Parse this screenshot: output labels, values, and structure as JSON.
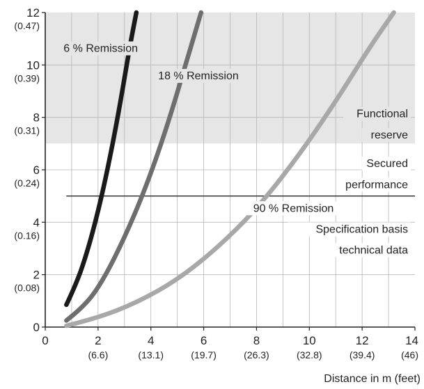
{
  "chart_data": {
    "type": "line",
    "xlabel": "Distance in m (feet)",
    "ylabel": "",
    "xlim": [
      0,
      14
    ],
    "ylim": [
      0,
      12
    ],
    "grid": true,
    "x_ticks": [
      {
        "value": 0,
        "label": "0",
        "sub": ""
      },
      {
        "value": 2,
        "label": "2",
        "sub": "(6.6)"
      },
      {
        "value": 4,
        "label": "4",
        "sub": "(13.1)"
      },
      {
        "value": 6,
        "label": "6",
        "sub": "(19.7)"
      },
      {
        "value": 8,
        "label": "8",
        "sub": "(26.3)"
      },
      {
        "value": 10,
        "label": "10",
        "sub": "(32.8)"
      },
      {
        "value": 12,
        "label": "12",
        "sub": "(39.4)"
      },
      {
        "value": 14,
        "label": "14",
        "sub": "(46)"
      }
    ],
    "y_ticks": [
      {
        "value": 0,
        "label": "0",
        "sub": ""
      },
      {
        "value": 2,
        "label": "2",
        "sub": "(0.08)"
      },
      {
        "value": 4,
        "label": "4",
        "sub": "(0.16)"
      },
      {
        "value": 6,
        "label": "6",
        "sub": "(0.24)"
      },
      {
        "value": 8,
        "label": "8",
        "sub": "(0.31)"
      },
      {
        "value": 10,
        "label": "10",
        "sub": "(0.39)"
      },
      {
        "value": 12,
        "label": "12",
        "sub": "(0.47)"
      }
    ],
    "series": [
      {
        "name": "6 % Remission",
        "color": "#1a1a1a",
        "x": [
          0.8,
          1.2,
          1.6,
          2.0,
          2.4,
          2.8,
          3.2,
          3.45
        ],
        "y": [
          0.85,
          1.7,
          2.9,
          4.4,
          6.2,
          8.3,
          10.7,
          12
        ]
      },
      {
        "name": "18 % Remission",
        "color": "#6e6e6e",
        "x": [
          0.8,
          1.5,
          2.2,
          3.0,
          3.8,
          4.6,
          5.4,
          5.9
        ],
        "y": [
          0.25,
          0.8,
          1.8,
          3.4,
          5.3,
          7.6,
          10.3,
          12
        ]
      },
      {
        "name": "90 % Remission",
        "color": "#a8a8a8",
        "x": [
          0.8,
          2.0,
          3.5,
          5.0,
          6.5,
          8.0,
          9.5,
          11.0,
          12.3,
          13.2
        ],
        "y": [
          0.05,
          0.35,
          0.95,
          1.8,
          3.0,
          4.5,
          6.4,
          8.6,
          10.7,
          12
        ]
      }
    ],
    "regions": [
      {
        "label_lines": [
          "Functional",
          "reserve"
        ],
        "y_from": 7,
        "y_to": 12,
        "fill": "#e6e6e6"
      },
      {
        "label_lines": [
          "Secured",
          "performance"
        ],
        "y_from": 5,
        "y_to": 7,
        "fill": "#ffffff"
      },
      {
        "label_lines": [
          "Specification basis",
          "technical data"
        ],
        "y_from": 0,
        "y_to": 5,
        "fill": "#ffffff"
      }
    ],
    "reference_lines": [
      {
        "y": 5,
        "x_from": 0.8,
        "x_to": 14
      }
    ]
  }
}
